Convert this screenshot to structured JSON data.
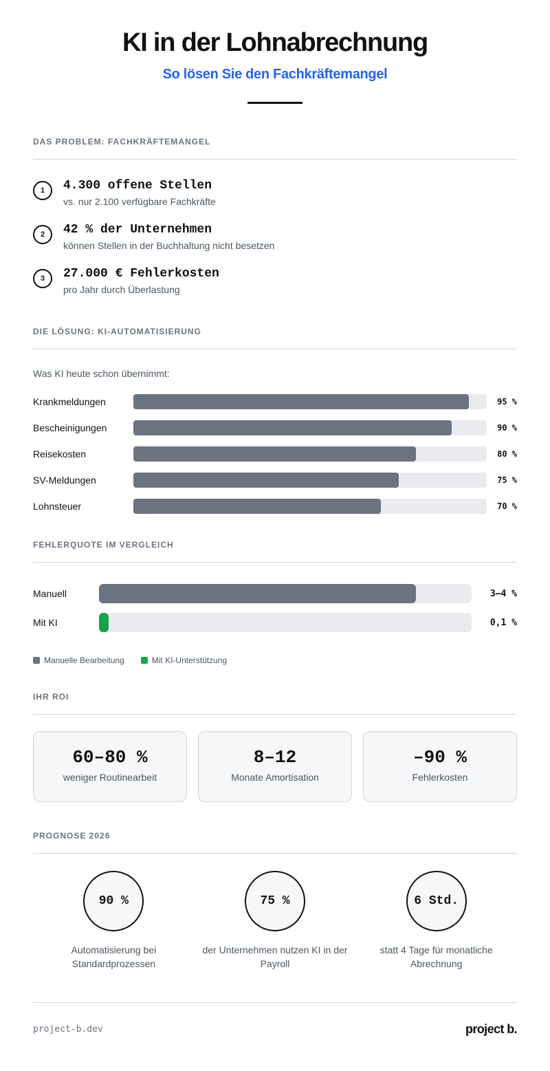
{
  "header": {
    "title": "KI in der Lohnabrechnung",
    "subtitle": "So lösen Sie den Fachkräftemangel"
  },
  "problem": {
    "section_title": "DAS PROBLEM: FACHKRÄFTEMANGEL",
    "items": [
      {
        "number": "1",
        "headline": "4.300 offene Stellen",
        "description": "vs. nur 2.100 verfügbare Fachkräfte"
      },
      {
        "number": "2",
        "headline": "42 % der Unternehmen",
        "description": "können Stellen in der Buchhaltung nicht besetzen"
      },
      {
        "number": "3",
        "headline": "27.000 € Fehlerkosten",
        "description": "pro Jahr durch Überlastung"
      }
    ]
  },
  "solution": {
    "section_title": "DIE LÖSUNG: KI-AUTOMATISIERUNG",
    "intro": "Was KI heute schon übernimmt:",
    "bars": [
      {
        "label": "Krankmeldungen",
        "value": 95,
        "display": "95 %"
      },
      {
        "label": "Bescheinigungen",
        "value": 90,
        "display": "90 %"
      },
      {
        "label": "Reisekosten",
        "value": 80,
        "display": "80 %"
      },
      {
        "label": "SV-Meldungen",
        "value": 75,
        "display": "75 %"
      },
      {
        "label": "Lohnsteuer",
        "value": 70,
        "display": "70 %"
      }
    ]
  },
  "error_rate": {
    "section_title": "FEHLERQUOTE IM VERGLEICH",
    "rows": [
      {
        "label": "Manuell",
        "display": "3–4 %",
        "fill_percent": 85,
        "color": "#6b7280"
      },
      {
        "label": "Mit KI",
        "display": "0,1 %",
        "fill_percent": 2.5,
        "color": "#16a34a"
      }
    ],
    "legend": [
      {
        "label": "Manuelle Bearbeitung",
        "color": "#6b7280"
      },
      {
        "label": "Mit KI-Unterstützung",
        "color": "#16a34a"
      }
    ]
  },
  "roi": {
    "section_title": "IHR ROI",
    "cards": [
      {
        "value": "60–80 %",
        "label": "weniger Routinearbeit"
      },
      {
        "value": "8–12",
        "label": "Monate Amortisation"
      },
      {
        "value": "–90 %",
        "label": "Fehlerkosten"
      }
    ]
  },
  "prognosis": {
    "section_title": "PROGNOSE 2026",
    "items": [
      {
        "value": "90 %",
        "caption": "Automatisierung bei Standardprozessen"
      },
      {
        "value": "75 %",
        "caption": "der Unternehmen nutzen KI in der Payroll"
      },
      {
        "value": "6 Std.",
        "caption": "statt 4 Tage für monatliche Abrechnung"
      }
    ]
  },
  "footer": {
    "url": "project-b.dev",
    "brand": "project b."
  },
  "colors": {
    "accent": "#2563eb",
    "bar_gray": "#6b7280",
    "bar_track": "#ebebef",
    "success_green": "#16a34a",
    "muted_text": "#6b7280"
  },
  "chart_data": [
    {
      "type": "bar",
      "orientation": "horizontal",
      "title": "Was KI heute schon übernimmt:",
      "categories": [
        "Krankmeldungen",
        "Bescheinigungen",
        "Reisekosten",
        "SV-Meldungen",
        "Lohnsteuer"
      ],
      "values": [
        95,
        90,
        80,
        75,
        70
      ],
      "unit": "%",
      "xlim": [
        0,
        100
      ],
      "grid": false
    },
    {
      "type": "bar",
      "orientation": "horizontal",
      "title": "Fehlerquote im Vergleich",
      "categories": [
        "Manuell",
        "Mit KI"
      ],
      "labels": [
        "3–4 %",
        "0,1 %"
      ],
      "values": [
        3.5,
        0.1
      ],
      "unit": "%",
      "legend": [
        "Manuelle Bearbeitung",
        "Mit KI-Unterstützung"
      ],
      "legend_position": "bottom-left",
      "grid": false
    }
  ]
}
